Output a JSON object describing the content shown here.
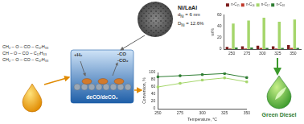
{
  "feedstock": {
    "lines": [
      "CH₂ – O – CO – C₁₇H₃₃",
      "CH – O – CO – C₁₇H₃₃",
      "CH₂ – O – CO – C₁₇H₃₃"
    ]
  },
  "catalyst": {
    "name": "Ni/LaAl",
    "properties": [
      {
        "symbol": "d",
        "sub": "Ni",
        "text": " = 6 nm"
      },
      {
        "symbol": "D",
        "sub": "Ni",
        "text": " = 12.6%"
      }
    ]
  },
  "reaction": {
    "reactant": "+H₂",
    "products": [
      "-CO",
      "-CO₂"
    ],
    "pathway": "deCO/deCO₂"
  },
  "product": "Green Diesel",
  "chart_data": [
    {
      "type": "bar",
      "categories": [
        "250",
        "275",
        "300",
        "325",
        "350"
      ],
      "series": [
        {
          "name": "n-C₁₅",
          "color": "#7b1c1c",
          "values": [
            4,
            5,
            6,
            5,
            7
          ]
        },
        {
          "name": "n-C₁₆",
          "color": "#c0392b",
          "values": [
            1,
            1,
            2,
            1,
            2
          ]
        },
        {
          "name": "n-C₁₇",
          "color": "#a5d66b",
          "values": [
            45,
            50,
            55,
            48,
            52
          ]
        },
        {
          "name": "n-C₁₈",
          "color": "#2e7d32",
          "values": [
            3,
            3,
            2,
            2,
            2
          ]
        }
      ],
      "ylim": [
        0,
        60
      ],
      "yticks": [
        0,
        20,
        40,
        60
      ],
      "ylabel": "wt%",
      "legend": "top",
      "grid": false
    },
    {
      "type": "line",
      "categories": [
        "250",
        "275",
        "300",
        "325",
        "350"
      ],
      "series": [
        {
          "color": "#2e7d32",
          "marker": "square",
          "values": [
            88,
            91,
            94,
            97,
            86
          ]
        },
        {
          "color": "#a5d66b",
          "marker": "square",
          "values": [
            60,
            70,
            79,
            85,
            74
          ]
        }
      ],
      "ylim": [
        0,
        100
      ],
      "yticks": [
        0,
        20,
        40,
        60,
        80,
        100
      ],
      "xlabel": "Temperature, °C",
      "ylabel": "Conversion, %",
      "grid": false
    }
  ]
}
